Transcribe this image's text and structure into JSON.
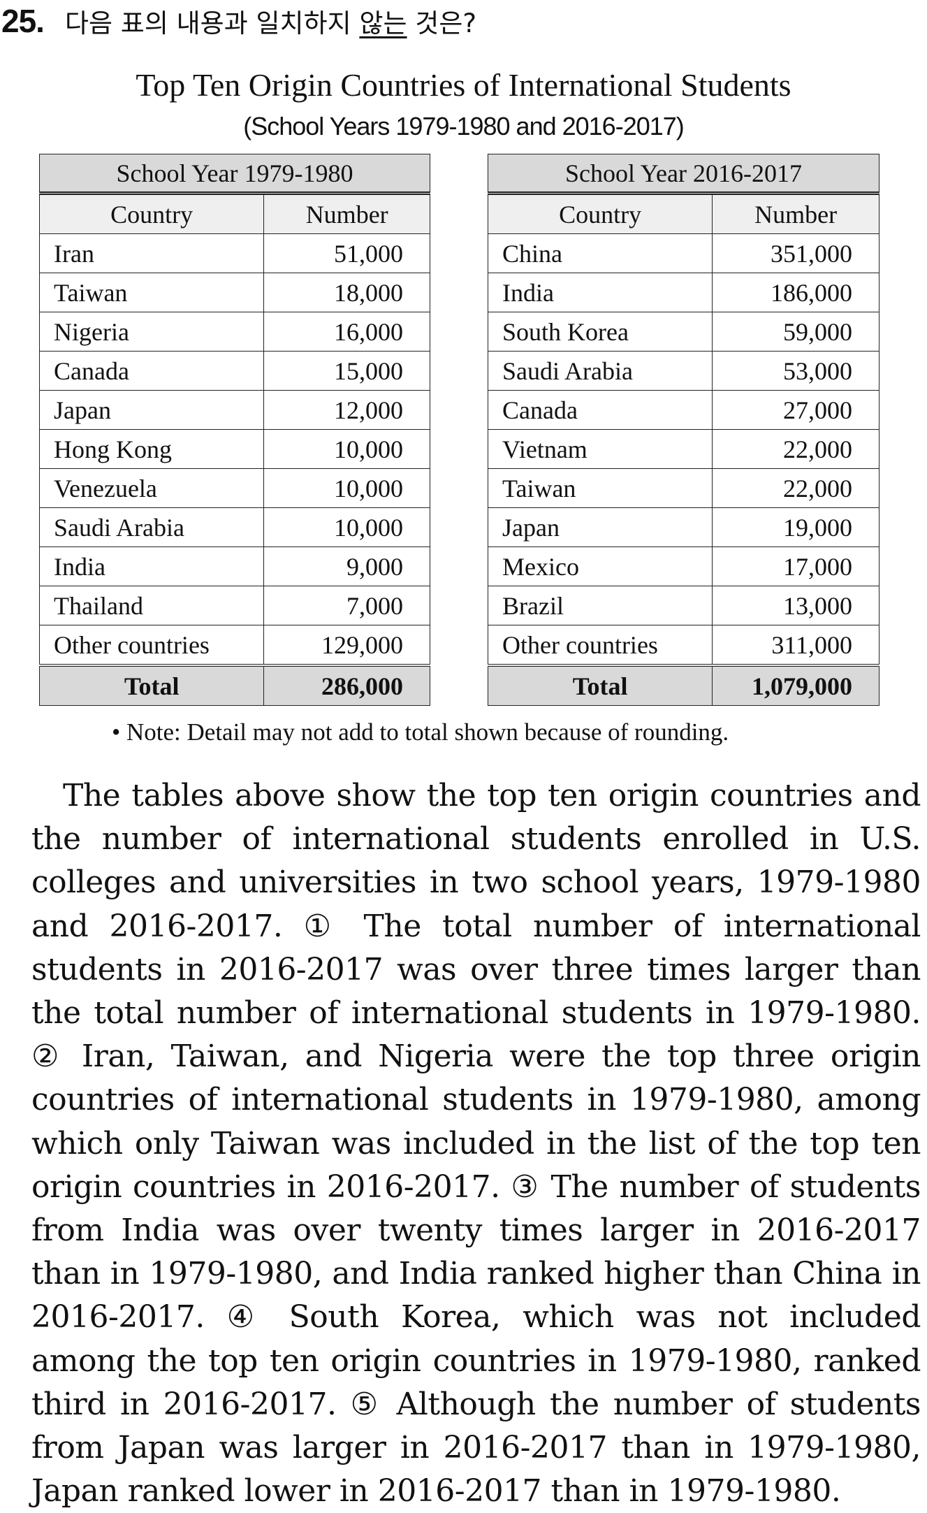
{
  "question": {
    "number": "25.",
    "text_before": "다음 표의 내용과 일치하지 ",
    "text_underlined": "않는",
    "text_after": " 것은?"
  },
  "title": "Top Ten Origin Countries of International Students",
  "subtitle": "(School Years 1979-1980 and 2016-2017)",
  "tables": [
    {
      "heading": "School Year 1979-1980",
      "col_country": "Country",
      "col_number": "Number",
      "rows": [
        {
          "country": "Iran",
          "number": "51,000"
        },
        {
          "country": "Taiwan",
          "number": "18,000"
        },
        {
          "country": "Nigeria",
          "number": "16,000"
        },
        {
          "country": "Canada",
          "number": "15,000"
        },
        {
          "country": "Japan",
          "number": "12,000"
        },
        {
          "country": "Hong Kong",
          "number": "10,000"
        },
        {
          "country": "Venezuela",
          "number": "10,000"
        },
        {
          "country": "Saudi Arabia",
          "number": "10,000"
        },
        {
          "country": "India",
          "number": "9,000"
        },
        {
          "country": "Thailand",
          "number": "7,000"
        },
        {
          "country": "Other countries",
          "number": "129,000"
        }
      ],
      "total_label": "Total",
      "total_value": "286,000"
    },
    {
      "heading": "School Year 2016-2017",
      "col_country": "Country",
      "col_number": "Number",
      "rows": [
        {
          "country": "China",
          "number": "351,000"
        },
        {
          "country": "India",
          "number": "186,000"
        },
        {
          "country": "South Korea",
          "number": "59,000"
        },
        {
          "country": "Saudi Arabia",
          "number": "53,000"
        },
        {
          "country": "Canada",
          "number": "27,000"
        },
        {
          "country": "Vietnam",
          "number": "22,000"
        },
        {
          "country": "Taiwan",
          "number": "22,000"
        },
        {
          "country": "Japan",
          "number": "19,000"
        },
        {
          "country": "Mexico",
          "number": "17,000"
        },
        {
          "country": "Brazil",
          "number": "13,000"
        },
        {
          "country": "Other countries",
          "number": "311,000"
        }
      ],
      "total_label": "Total",
      "total_value": "1,079,000"
    }
  ],
  "note": "• Note: Detail may not add to total shown because of rounding.",
  "passage": "The tables above show the top ten origin countries and the number of international students enrolled in U.S. colleges and universities in two school years, 1979-1980 and 2016-2017. ① The total number of international students in 2016-2017 was over three times larger than the total number of international students in 1979-1980. ② Iran, Taiwan, and Nigeria were the top three origin countries of international students in 1979-1980, among which only Taiwan was included in the list of the top ten origin countries in 2016-2017. ③ The number of students from India was over twenty times larger in 2016-2017 than in 1979-1980, and India ranked higher than China in 2016-2017. ④ South Korea, which was not included among the top ten origin countries in 1979-1980, ranked third in 2016-2017. ⑤ Although the number of students from Japan was larger in 2016-2017 than in 1979-1980, Japan ranked lower in 2016-2017 than in 1979-1980."
}
